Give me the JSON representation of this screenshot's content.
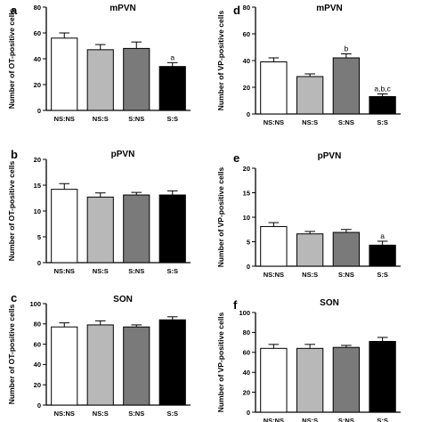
{
  "figure": {
    "colors": {
      "NS:NS": "#ffffff",
      "NS:S": "#b8b8b8",
      "S:NS": "#7a7a7a",
      "S:S": "#000000"
    }
  },
  "chart_data": [
    {
      "type": "bar",
      "panel": "a",
      "title": "mPVN",
      "ylabel": "Number of OT-positive cells",
      "categories": [
        "NS:NS",
        "NS:S",
        "S:NS",
        "S:S"
      ],
      "values": [
        56,
        47,
        48,
        34
      ],
      "errors": [
        4,
        4,
        5,
        3
      ],
      "annotations": [
        "",
        "",
        "",
        "a"
      ],
      "ylim": [
        0,
        80
      ],
      "yticks": [
        "0",
        "20",
        "40",
        "60",
        "80"
      ]
    },
    {
      "type": "bar",
      "panel": "b",
      "title": "pPVN",
      "ylabel": "Number of OT-positive cells",
      "categories": [
        "NS:NS",
        "NS:S",
        "S:NS",
        "S:S"
      ],
      "values": [
        14.2,
        12.7,
        13.1,
        13.1
      ],
      "errors": [
        1.1,
        0.8,
        0.5,
        0.8
      ],
      "annotations": [
        "",
        "",
        "",
        ""
      ],
      "ylim": [
        0,
        20
      ],
      "yticks": [
        "0",
        "5",
        "10",
        "15",
        "20"
      ]
    },
    {
      "type": "bar",
      "panel": "c",
      "title": "SON",
      "ylabel": "Number of OT-positive cells",
      "categories": [
        "NS:NS",
        "NS:S",
        "S:NS",
        "S:S"
      ],
      "values": [
        77,
        79,
        77,
        84
      ],
      "errors": [
        4,
        4,
        2,
        3
      ],
      "annotations": [
        "",
        "",
        "",
        ""
      ],
      "ylim": [
        0,
        100
      ],
      "yticks": [
        "0",
        "20",
        "40",
        "60",
        "80",
        "100"
      ]
    },
    {
      "type": "bar",
      "panel": "d",
      "title": "mPVN",
      "ylabel": "Number of VP-positive cells",
      "categories": [
        "NS:NS",
        "NS:S",
        "S:NS",
        "S:S"
      ],
      "values": [
        39,
        28,
        42,
        13
      ],
      "errors": [
        3,
        2,
        3,
        2
      ],
      "annotations": [
        "",
        "",
        "b",
        "a,b,c"
      ],
      "ylim": [
        0,
        80
      ],
      "yticks": [
        "0",
        "20",
        "40",
        "60",
        "80"
      ]
    },
    {
      "type": "bar",
      "panel": "e",
      "title": "pPVN",
      "ylabel": "Number of VP-positive cells",
      "categories": [
        "NS:NS",
        "NS:S",
        "S:NS",
        "S:S"
      ],
      "values": [
        8.1,
        6.6,
        6.9,
        4.3
      ],
      "errors": [
        0.8,
        0.5,
        0.6,
        0.8
      ],
      "annotations": [
        "",
        "",
        "",
        "a"
      ],
      "ylim": [
        0,
        20
      ],
      "yticks": [
        "0",
        "5",
        "10",
        "15",
        "20"
      ]
    },
    {
      "type": "bar",
      "panel": "f",
      "title": "SON",
      "ylabel": "Number of VP-positive cells",
      "categories": [
        "NS:NS",
        "NS:S",
        "S:NS",
        "S:S"
      ],
      "values": [
        64,
        64,
        65,
        71
      ],
      "errors": [
        4,
        4,
        2,
        4
      ],
      "annotations": [
        "",
        "",
        "",
        ""
      ],
      "ylim": [
        0,
        100
      ],
      "yticks": [
        "0",
        "20",
        "40",
        "60",
        "80",
        "100"
      ]
    }
  ]
}
